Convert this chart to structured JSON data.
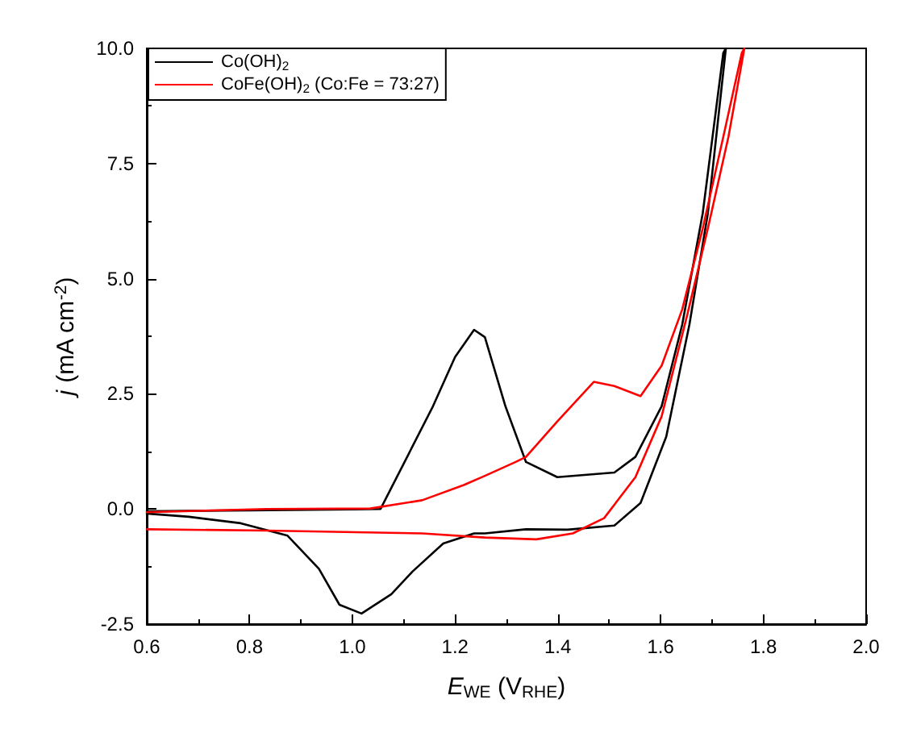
{
  "chart_data": {
    "type": "line",
    "xlabel": "E$_{WE}$ (V$_{RHE}$)",
    "ylabel": "j (mA cm$^{-2}$)",
    "xlim": [
      0.6,
      2.0
    ],
    "ylim": [
      -2.5,
      10.0
    ],
    "xticks": [
      0.6,
      0.8,
      {
        "value": 1.0,
        "label": "1.0"
      },
      1.2,
      1.4,
      1.6,
      1.8,
      {
        "value": 2.0,
        "label": "2.0"
      }
    ],
    "yticks": [
      -2.5,
      {
        "value": 0,
        "label": "0.0"
      },
      2.5,
      {
        "value": 5,
        "label": "5.0"
      },
      7.5,
      {
        "value": 10,
        "label": "10.0"
      }
    ],
    "grid": false,
    "legend": "top left",
    "marker": "none",
    "line_style": "solid",
    "series": [
      {
        "name": "Co(OH)$_{2}$",
        "color": "#000000",
        "x": [
          0.6,
          0.8,
          1.0,
          1.055,
          1.157,
          1.2,
          1.237,
          1.258,
          1.298,
          1.338,
          1.399,
          1.51,
          1.551,
          1.602,
          1.642,
          1.682,
          1.722,
          1.727,
          1.692,
          1.656,
          1.611,
          1.561,
          1.51,
          1.419,
          1.338,
          1.258,
          1.237,
          1.177,
          1.117,
          1.076,
          1.018,
          0.975,
          0.935,
          0.874,
          0.783,
          0.682,
          0.6
        ],
        "values": [
          -0.05,
          -0.03,
          -0.01,
          0,
          2.23,
          3.3,
          3.89,
          3.73,
          2.23,
          1.02,
          0.69,
          0.79,
          1.13,
          2.23,
          4.0,
          6.42,
          9.9,
          10.0,
          6.42,
          4.0,
          1.57,
          0.13,
          -0.36,
          -0.45,
          -0.44,
          -0.53,
          -0.53,
          -0.75,
          -1.36,
          -1.85,
          -2.27,
          -2.08,
          -1.3,
          -0.58,
          -0.31,
          -0.17,
          -0.1
        ]
      },
      {
        "name": "CoFe(OH)$_{2}$ (Co:Fe = 73:27)",
        "color": "#ff0000",
        "x": [
          0.6,
          0.833,
          1.035,
          1.136,
          1.217,
          1.258,
          1.318,
          1.338,
          1.399,
          1.47,
          1.51,
          1.561,
          1.602,
          1.642,
          1.682,
          1.722,
          1.758,
          1.763,
          1.732,
          1.692,
          1.652,
          1.602,
          1.551,
          1.49,
          1.429,
          1.358,
          1.258,
          1.136,
          0.833,
          0.6
        ],
        "values": [
          -0.07,
          0,
          0.01,
          0.19,
          0.52,
          0.72,
          1.02,
          1.13,
          1.9,
          2.76,
          2.67,
          2.45,
          3.11,
          4.33,
          6.09,
          8.08,
          9.9,
          10.0,
          8.08,
          6.09,
          4.22,
          2.01,
          0.69,
          -0.2,
          -0.53,
          -0.66,
          -0.62,
          -0.53,
          -0.47,
          -0.44
        ]
      }
    ]
  }
}
